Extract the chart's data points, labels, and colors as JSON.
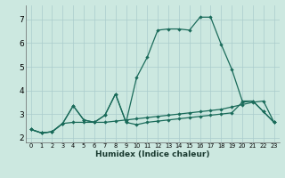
{
  "xlabel": "Humidex (Indice chaleur)",
  "bg_color": "#cce8e0",
  "grid_color": "#aacccc",
  "line_color": "#1a6b5a",
  "xlim": [
    -0.5,
    23.5
  ],
  "ylim": [
    1.8,
    7.6
  ],
  "xticks": [
    0,
    1,
    2,
    3,
    4,
    5,
    6,
    7,
    8,
    9,
    10,
    11,
    12,
    13,
    14,
    15,
    16,
    17,
    18,
    19,
    20,
    21,
    22,
    23
  ],
  "yticks": [
    2,
    3,
    4,
    5,
    6,
    7
  ],
  "line1_x": [
    0,
    1,
    2,
    3,
    4,
    5,
    6,
    7,
    8,
    9,
    10,
    11,
    12,
    13,
    14,
    15,
    16,
    17,
    18,
    19,
    20,
    21,
    22,
    23
  ],
  "line1_y": [
    2.35,
    2.2,
    2.25,
    2.6,
    3.35,
    2.75,
    2.65,
    2.95,
    3.85,
    2.65,
    4.55,
    5.4,
    6.55,
    6.6,
    6.6,
    6.55,
    7.1,
    7.1,
    5.95,
    4.9,
    3.55,
    3.55,
    3.1,
    2.65
  ],
  "line2_x": [
    0,
    1,
    2,
    3,
    4,
    5,
    6,
    7,
    8,
    9,
    10,
    11,
    12,
    13,
    14,
    15,
    16,
    17,
    18,
    19,
    20,
    21,
    22,
    23
  ],
  "line2_y": [
    2.35,
    2.2,
    2.25,
    2.6,
    3.35,
    2.75,
    2.65,
    2.95,
    3.85,
    2.65,
    2.55,
    2.65,
    2.7,
    2.75,
    2.8,
    2.85,
    2.9,
    2.95,
    3.0,
    3.05,
    3.5,
    3.55,
    3.1,
    2.65
  ],
  "line3_x": [
    0,
    1,
    2,
    3,
    4,
    5,
    6,
    7,
    8,
    9,
    10,
    11,
    12,
    13,
    14,
    15,
    16,
    17,
    18,
    19,
    20,
    21,
    22,
    23
  ],
  "line3_y": [
    2.35,
    2.2,
    2.25,
    2.6,
    2.65,
    2.65,
    2.65,
    2.65,
    2.7,
    2.75,
    2.8,
    2.85,
    2.9,
    2.95,
    3.0,
    3.05,
    3.1,
    3.15,
    3.2,
    3.3,
    3.4,
    3.5,
    3.55,
    2.65
  ]
}
